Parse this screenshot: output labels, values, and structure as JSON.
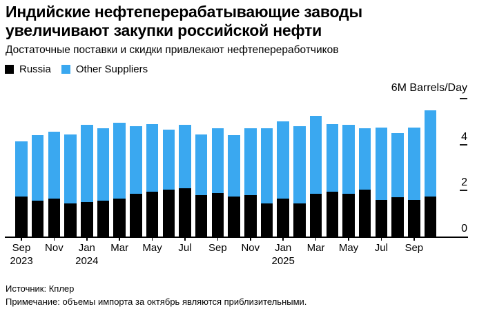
{
  "title": {
    "line1": "Индийские нефтеперерабатывающие заводы",
    "line2": "увеличивают закупки российской нефти"
  },
  "subtitle": "Достаточные поставки и скидки привлекают нефтепереработчиков",
  "legend": [
    {
      "label": "Russia",
      "color": "#000000"
    },
    {
      "label": "Other Suppliers",
      "color": "#3aa8f0"
    }
  ],
  "y_axis": {
    "unit_label": "6M Barrels/Day",
    "tick_values": [
      0,
      2,
      4,
      6
    ],
    "tick_labels": [
      "0",
      "2",
      "4"
    ]
  },
  "footer": {
    "source": "Источник: Кплер",
    "note": "Примечание: объемы импорта за октябрь являются приблизительными."
  },
  "chart_data": {
    "type": "bar",
    "stacked": true,
    "unit": "M Barrels/Day",
    "ylim": [
      0,
      6
    ],
    "grid": false,
    "legend_position": "top-left",
    "value_axis_side": "right",
    "categories": [
      "Sep 2023",
      "Oct 2023",
      "Nov 2023",
      "Dec 2023",
      "Jan 2024",
      "Feb 2024",
      "Mar 2024",
      "Apr 2024",
      "May 2024",
      "Jun 2024",
      "Jul 2024",
      "Aug 2024",
      "Sep 2024",
      "Oct 2024",
      "Nov 2024",
      "Dec 2024",
      "Jan 2025",
      "Feb 2025",
      "Mar 2025",
      "Apr 2025",
      "May 2025",
      "Jun 2025",
      "Jul 2025",
      "Aug 2025",
      "Sep 2025",
      "Oct 2025"
    ],
    "series": [
      {
        "name": "Russia",
        "color": "#000000",
        "values": [
          1.75,
          1.55,
          1.65,
          1.45,
          1.5,
          1.55,
          1.65,
          1.85,
          1.95,
          2.05,
          2.1,
          1.8,
          1.9,
          1.75,
          1.8,
          1.45,
          1.65,
          1.45,
          1.85,
          1.95,
          1.85,
          2.05,
          1.6,
          1.7,
          1.6,
          1.75
        ]
      },
      {
        "name": "Other Suppliers",
        "color": "#3aa8f0",
        "values": [
          2.4,
          2.85,
          2.9,
          3.0,
          3.35,
          3.15,
          3.3,
          2.95,
          2.95,
          2.6,
          2.75,
          2.65,
          2.8,
          2.65,
          2.9,
          3.25,
          3.35,
          3.35,
          3.4,
          2.95,
          3.0,
          2.65,
          3.15,
          2.8,
          3.15,
          3.75
        ]
      }
    ],
    "x_ticks": [
      {
        "index": 0,
        "month": "Sep",
        "year": "2023"
      },
      {
        "index": 2,
        "month": "Nov"
      },
      {
        "index": 4,
        "month": "Jan",
        "year": "2024"
      },
      {
        "index": 6,
        "month": "Mar"
      },
      {
        "index": 8,
        "month": "May"
      },
      {
        "index": 10,
        "month": "Jul"
      },
      {
        "index": 12,
        "month": "Sep"
      },
      {
        "index": 14,
        "month": "Nov"
      },
      {
        "index": 16,
        "month": "Jan",
        "year": "2025"
      },
      {
        "index": 18,
        "month": "Mar"
      },
      {
        "index": 20,
        "month": "May"
      },
      {
        "index": 22,
        "month": "Jul"
      },
      {
        "index": 24,
        "month": "Sep"
      }
    ]
  }
}
